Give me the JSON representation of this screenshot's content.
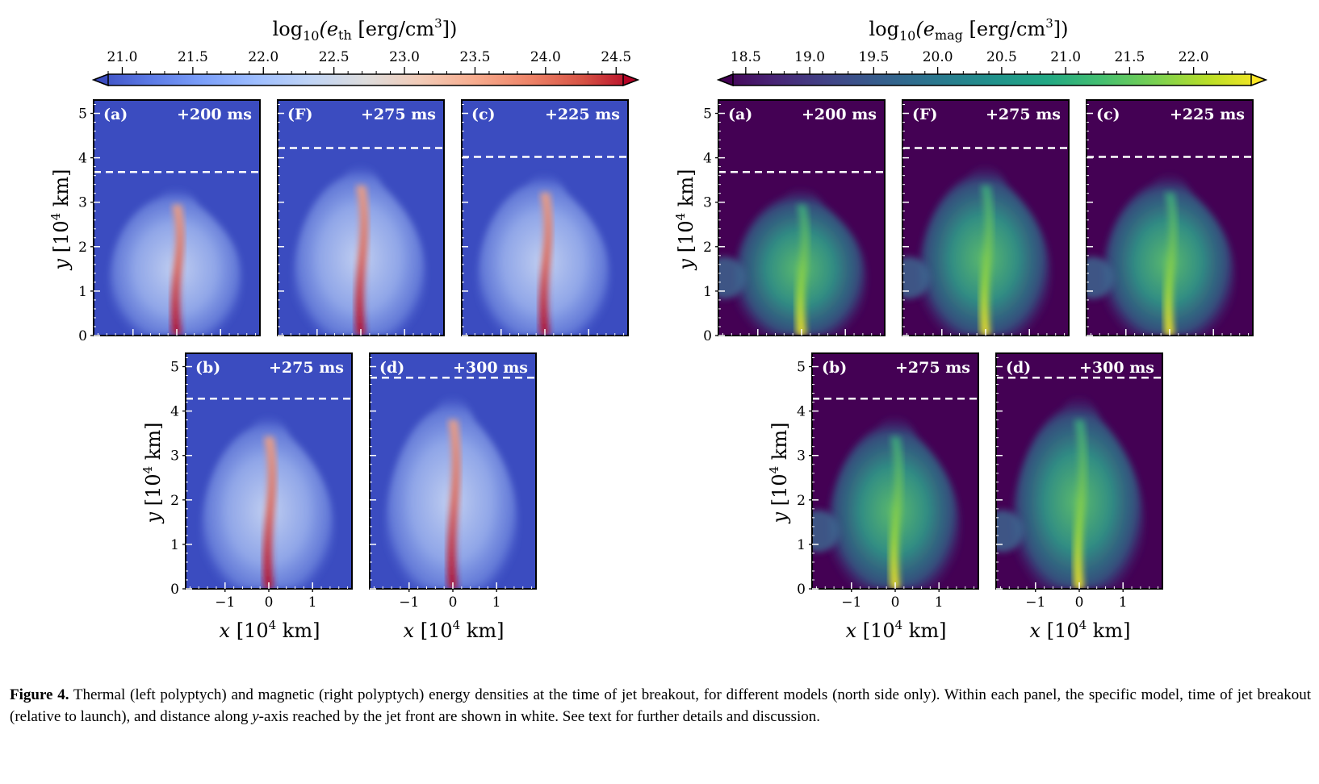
{
  "figure": {
    "thermal": {
      "colorbar": {
        "label": "log₁₀(eₜₕ [erg/cm³])",
        "label_main": "log",
        "label_sub": "10",
        "label_var": "(e",
        "label_varsub": "th",
        "label_units": " [erg/cm",
        "label_sup": "3",
        "label_close": "])",
        "ticks": [
          "21.0",
          "21.5",
          "22.0",
          "22.5",
          "23.0",
          "23.5",
          "24.0",
          "24.5"
        ],
        "tick_values": [
          21.0,
          21.5,
          22.0,
          22.5,
          23.0,
          23.5,
          24.0,
          24.5
        ],
        "range": [
          20.9,
          24.55
        ],
        "colormap": "coolwarm",
        "extend": "both"
      },
      "background_color": "#3b4cc0",
      "panels": [
        {
          "id": "a",
          "label": "(a)",
          "time": "+200 ms",
          "front_y": 3.68,
          "row": 0
        },
        {
          "id": "F",
          "label": "(F)",
          "time": "+275 ms",
          "front_y": 4.22,
          "row": 0
        },
        {
          "id": "c",
          "label": "(c)",
          "time": "+225 ms",
          "front_y": 4.02,
          "row": 0
        },
        {
          "id": "b",
          "label": "(b)",
          "time": "+275 ms",
          "front_y": 4.28,
          "row": 1
        },
        {
          "id": "d",
          "label": "(d)",
          "time": "+300 ms",
          "front_y": 4.75,
          "row": 1
        }
      ]
    },
    "magnetic": {
      "colorbar": {
        "label": "log₁₀(eₘₐᵍ [erg/cm³])",
        "label_main": "log",
        "label_sub": "10",
        "label_var": "(e",
        "label_varsub": "mag",
        "label_units": " [erg/cm",
        "label_sup": "3",
        "label_close": "])",
        "ticks": [
          "18.5",
          "19.0",
          "19.5",
          "20.0",
          "20.5",
          "21.0",
          "21.5",
          "22.0"
        ],
        "tick_values": [
          18.5,
          19.0,
          19.5,
          20.0,
          20.5,
          21.0,
          21.5,
          22.0
        ],
        "range": [
          18.4,
          22.45
        ],
        "colormap": "viridis",
        "extend": "both"
      },
      "background_color": "#440154",
      "panels": [
        {
          "id": "a",
          "label": "(a)",
          "time": "+200 ms",
          "front_y": 3.68,
          "row": 0
        },
        {
          "id": "F",
          "label": "(F)",
          "time": "+275 ms",
          "front_y": 4.22,
          "row": 0
        },
        {
          "id": "c",
          "label": "(c)",
          "time": "+225 ms",
          "front_y": 4.02,
          "row": 0
        },
        {
          "id": "b",
          "label": "(b)",
          "time": "+275 ms",
          "front_y": 4.28,
          "row": 1
        },
        {
          "id": "d",
          "label": "(d)",
          "time": "+300 ms",
          "front_y": 4.75,
          "row": 1
        }
      ]
    },
    "axes": {
      "x_label_var": "x",
      "x_label_units": " [10",
      "x_label_sup": "4",
      "x_label_close": " km]",
      "y_label_var": "y",
      "y_label_units": " [10",
      "y_label_sup": "4",
      "y_label_close": " km]",
      "xlim": [
        -1.9,
        1.9
      ],
      "ylim": [
        0,
        5.3
      ],
      "x_ticks": [
        "−1",
        "0",
        "1"
      ],
      "x_tick_values": [
        -1,
        0,
        1
      ],
      "y_ticks": [
        "0",
        "1",
        "2",
        "3",
        "4",
        "5"
      ],
      "y_tick_values": [
        0,
        1,
        2,
        3,
        4,
        5
      ]
    }
  },
  "caption": {
    "label": "Figure 4.",
    "text": " Thermal (left polyptych) and magnetic (right polyptych) energy densities at the time of jet breakout, for different models (north side only). Within each panel, the specific model, time of jet breakout (relative to launch), and distance along ",
    "italic": "y",
    "text2": "-axis reached by the jet front are shown in white. See text for further details and discussion."
  }
}
